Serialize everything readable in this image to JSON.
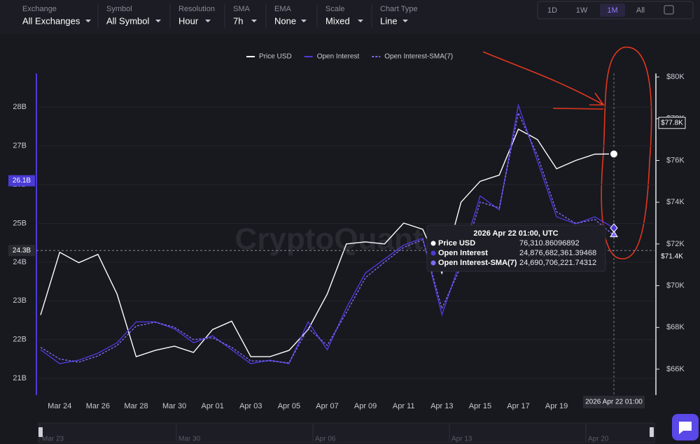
{
  "controls": [
    {
      "label": "Exchange",
      "value": "All Exchanges"
    },
    {
      "label": "Symbol",
      "value": "All Symbol"
    },
    {
      "label": "Resolution",
      "value": "Hour"
    },
    {
      "label": "SMA",
      "value": "7h"
    },
    {
      "label": "EMA",
      "value": "None"
    },
    {
      "label": "Scale",
      "value": "Mixed"
    },
    {
      "label": "Chart Type",
      "value": "Line"
    }
  ],
  "ranges": [
    "1D",
    "1W",
    "1M",
    "All"
  ],
  "active_range": "1M",
  "chart_data": {
    "type": "line",
    "categories": [
      null,
      "Mar 24",
      null,
      "Mar 26",
      null,
      "Mar 28",
      null,
      "Mar 30",
      null,
      "Apr 01",
      null,
      "Apr 03",
      null,
      "Apr 05",
      null,
      "Apr 07",
      null,
      "Apr 09",
      null,
      "Apr 11",
      null,
      "Apr 13",
      null,
      "Apr 15",
      null,
      "Apr 17",
      null,
      "Apr 19",
      null,
      null,
      null
    ],
    "series": [
      {
        "name": "Price USD",
        "color": "#ffffff",
        "axis": "y2",
        "dashed": false,
        "values": [
          68.6,
          71.6,
          71.1,
          71.5,
          69.6,
          66.6,
          66.9,
          67.1,
          66.8,
          67.9,
          68.3,
          66.6,
          66.6,
          66.9,
          67.9,
          69.6,
          72.0,
          72.1,
          72.0,
          73.0,
          72.7,
          70.6,
          74.0,
          75.0,
          75.3,
          77.5,
          77.0,
          75.6,
          76.0,
          76.3,
          76.31
        ]
      },
      {
        "name": "Open Interest",
        "color": "#4b3bd6",
        "dashed": false,
        "values": [
          21.74,
          21.38,
          21.47,
          21.65,
          21.92,
          22.46,
          22.46,
          22.28,
          21.92,
          22.1,
          21.74,
          21.38,
          21.47,
          21.38,
          22.46,
          21.74,
          22.82,
          23.72,
          24.08,
          24.44,
          24.62,
          22.64,
          24.08,
          25.71,
          25.35,
          28.05,
          26.61,
          25.17,
          24.99,
          25.17,
          24.88
        ]
      },
      {
        "name": "Open Interest-SMA(7)",
        "color": "#7a6cf5",
        "dashed": true,
        "values": [
          21.8,
          21.5,
          21.42,
          21.58,
          21.85,
          22.35,
          22.45,
          22.32,
          22.0,
          22.05,
          21.8,
          21.45,
          21.45,
          21.4,
          22.3,
          21.85,
          22.7,
          23.6,
          24.0,
          24.38,
          24.58,
          22.8,
          23.9,
          25.55,
          25.4,
          27.85,
          26.75,
          25.3,
          25.0,
          25.1,
          24.69
        ]
      }
    ],
    "ylim": [
      20.57,
      28.87
    ],
    "yticks": [
      {
        "value": 21,
        "label": "21B"
      },
      {
        "value": 22,
        "label": "22B"
      },
      {
        "value": 23,
        "label": "23B"
      },
      {
        "value": 24,
        "label": "24B"
      },
      {
        "value": 25,
        "label": "25B"
      },
      {
        "value": 26,
        "label": "26B"
      },
      {
        "value": 27,
        "label": "27B"
      },
      {
        "value": 28,
        "label": "28B"
      }
    ],
    "y2lim": [
      64.76,
      80.17
    ],
    "y2ticks": [
      {
        "value": 66,
        "label": "$66K"
      },
      {
        "value": 68,
        "label": "$68K"
      },
      {
        "value": 70,
        "label": "$70K"
      },
      {
        "value": 72,
        "label": "$72K"
      },
      {
        "value": 74,
        "label": "$74K"
      },
      {
        "value": 76,
        "label": "$76K"
      },
      {
        "value": 78,
        "label": "$78K"
      },
      {
        "value": 80,
        "label": "$80K"
      }
    ],
    "grid": true,
    "y_markers": [
      {
        "value": 26.1,
        "label": "26.1B"
      },
      {
        "value": 24.3,
        "label": "24.3B"
      }
    ],
    "y2_markers": [
      {
        "value": 77.8,
        "label": "$77.8K"
      },
      {
        "value": 71.4,
        "label": "$71.4K"
      }
    ],
    "crosshair_label": "2026 Apr 22 01:00",
    "tooltip": {
      "title": "2026 Apr 22 01:00, UTC",
      "rows": [
        {
          "name": "Price USD",
          "value": "76,310.86096892"
        },
        {
          "name": "Open Interest",
          "value": "24,876,682,361.39468"
        },
        {
          "name": "Open Interest-SMA(7)",
          "value": "24,690,706,221.74312"
        }
      ]
    },
    "watermark": "CryptoQuant",
    "navigator_labels": [
      "Mar 23",
      "Mar 30",
      "Apr 06",
      "Apr 13",
      "Apr 20"
    ]
  }
}
